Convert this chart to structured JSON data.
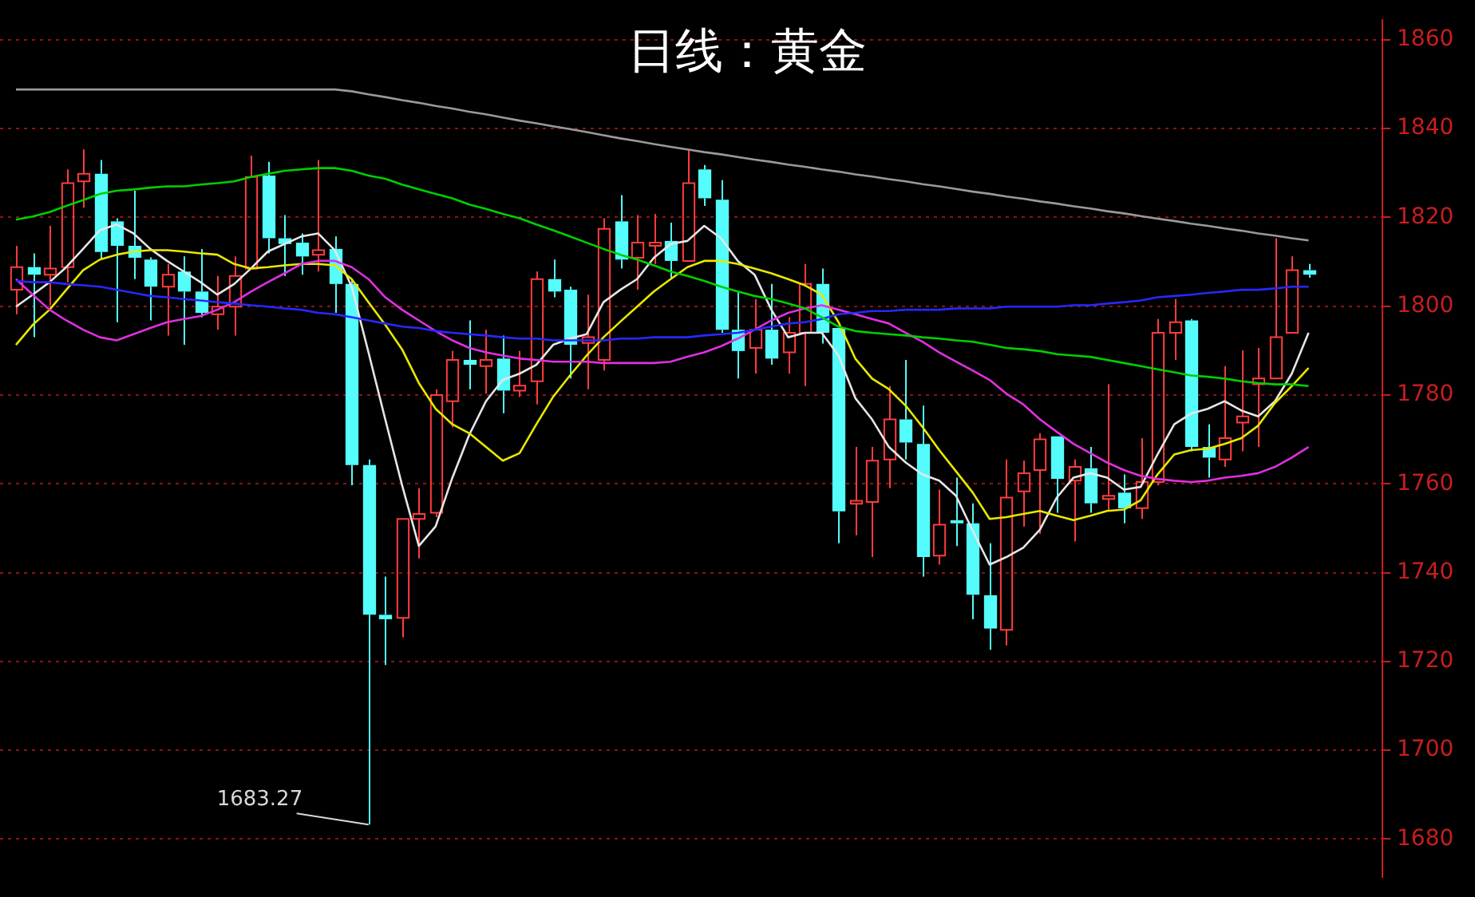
{
  "chart_data": {
    "type": "candlestick",
    "title": "日线：黄金",
    "categories": [
      null,
      null,
      null,
      null,
      null,
      null,
      null,
      null,
      null,
      null,
      null,
      null,
      null,
      null,
      null,
      null,
      null,
      null,
      null,
      null,
      null,
      null,
      null,
      null,
      null,
      null,
      null,
      null,
      null,
      null,
      null,
      null,
      null,
      null,
      null,
      null,
      null,
      null,
      null,
      null,
      null,
      null,
      null,
      null,
      null,
      null,
      null,
      null,
      null,
      null,
      null,
      null,
      null,
      null,
      null,
      null,
      null,
      null,
      null,
      null,
      null,
      null,
      null,
      null,
      null,
      null,
      null,
      null,
      null,
      null,
      null,
      null,
      null,
      null,
      null,
      null,
      null,
      null
    ],
    "ohlc": [
      [
        1803.7,
        1813.6,
        1798.2,
        1808.8
      ],
      [
        1808.8,
        1811.9,
        1793.0,
        1807.1
      ],
      [
        1807.1,
        1818.1,
        1800.2,
        1808.5
      ],
      [
        1808.8,
        1830.8,
        1805.4,
        1827.7
      ],
      [
        1828.1,
        1835.3,
        1822.2,
        1829.8
      ],
      [
        1829.8,
        1832.9,
        1810.5,
        1812.2
      ],
      [
        1819.1,
        1819.8,
        1796.4,
        1813.6
      ],
      [
        1813.6,
        1826.0,
        1806.1,
        1810.9
      ],
      [
        1810.5,
        1811.0,
        1796.8,
        1804.4
      ],
      [
        1804.4,
        1809.5,
        1793.4,
        1807.1
      ],
      [
        1807.8,
        1811.2,
        1791.3,
        1803.3
      ],
      [
        1803.3,
        1812.9,
        1797.5,
        1798.5
      ],
      [
        1798.2,
        1806.8,
        1794.7,
        1799.9
      ],
      [
        1799.9,
        1811.2,
        1793.4,
        1806.8
      ],
      [
        1808.5,
        1833.9,
        1808.5,
        1829.1
      ],
      [
        1829.4,
        1832.5,
        1811.9,
        1815.3
      ],
      [
        1815.3,
        1820.5,
        1806.8,
        1814.0
      ],
      [
        1814.3,
        1816.4,
        1807.1,
        1811.2
      ],
      [
        1811.6,
        1832.9,
        1807.8,
        1812.6
      ],
      [
        1812.9,
        1815.7,
        1798.5,
        1805.0
      ],
      [
        1805.0,
        1806.0,
        1759.7,
        1764.2
      ],
      [
        1764.2,
        1765.5,
        1683.27,
        1730.5
      ],
      [
        1730.5,
        1739.1,
        1719.2,
        1729.5
      ],
      [
        1729.8,
        1752.1,
        1725.4,
        1752.1
      ],
      [
        1752.1,
        1759.0,
        1743.2,
        1753.2
      ],
      [
        1753.5,
        1781.3,
        1752.5,
        1780.0
      ],
      [
        1778.6,
        1789.9,
        1772.7,
        1787.9
      ],
      [
        1787.9,
        1796.8,
        1781.3,
        1786.8
      ],
      [
        1786.5,
        1794.7,
        1780.3,
        1787.9
      ],
      [
        1788.2,
        1793.4,
        1775.9,
        1781.0
      ],
      [
        1781.0,
        1789.9,
        1779.6,
        1782.1
      ],
      [
        1783.1,
        1807.8,
        1777.9,
        1806.1
      ],
      [
        1806.1,
        1810.5,
        1802.0,
        1803.3
      ],
      [
        1803.7,
        1804.4,
        1783.7,
        1791.3
      ],
      [
        1791.7,
        1802.6,
        1781.3,
        1793.0
      ],
      [
        1787.9,
        1819.8,
        1785.5,
        1817.4
      ],
      [
        1819.1,
        1825.0,
        1808.5,
        1810.5
      ],
      [
        1810.9,
        1820.5,
        1803.7,
        1814.3
      ],
      [
        1813.6,
        1820.8,
        1809.5,
        1814.3
      ],
      [
        1814.7,
        1818.8,
        1806.1,
        1810.2
      ],
      [
        1810.2,
        1835.3,
        1810.2,
        1827.7
      ],
      [
        1830.8,
        1831.8,
        1822.6,
        1824.3
      ],
      [
        1824.0,
        1828.4,
        1794.0,
        1794.7
      ],
      [
        1794.7,
        1803.3,
        1783.7,
        1789.9
      ],
      [
        1790.6,
        1801.6,
        1784.8,
        1794.7
      ],
      [
        1794.7,
        1805.0,
        1786.8,
        1788.2
      ],
      [
        1789.6,
        1797.5,
        1784.8,
        1794.0
      ],
      [
        1794.0,
        1809.5,
        1782.0,
        1805.0
      ],
      [
        1805.0,
        1808.5,
        1791.6,
        1794.0
      ],
      [
        1795.1,
        1795.1,
        1746.6,
        1753.8
      ],
      [
        1755.5,
        1768.3,
        1748.4,
        1756.2
      ],
      [
        1755.9,
        1768.3,
        1743.5,
        1765.2
      ],
      [
        1765.5,
        1782.0,
        1759.0,
        1774.5
      ],
      [
        1774.5,
        1787.9,
        1765.5,
        1769.3
      ],
      [
        1769.0,
        1777.6,
        1739.1,
        1743.5
      ],
      [
        1743.8,
        1758.7,
        1741.8,
        1750.8
      ],
      [
        1751.8,
        1761.4,
        1746.0,
        1751.1
      ],
      [
        1751.1,
        1755.6,
        1729.5,
        1735.0
      ],
      [
        1734.9,
        1746.6,
        1722.6,
        1727.4
      ],
      [
        1727.1,
        1765.5,
        1723.6,
        1756.9
      ],
      [
        1758.3,
        1765.2,
        1750.4,
        1762.4
      ],
      [
        1763.1,
        1771.4,
        1748.7,
        1770.0
      ],
      [
        1770.7,
        1770.7,
        1753.5,
        1761.1
      ],
      [
        1760.7,
        1765.5,
        1747.0,
        1763.8
      ],
      [
        1763.5,
        1768.3,
        1753.5,
        1755.6
      ],
      [
        1756.6,
        1782.4,
        1753.8,
        1757.3
      ],
      [
        1758.0,
        1762.1,
        1751.1,
        1754.5
      ],
      [
        1754.5,
        1770.3,
        1752.1,
        1760.4
      ],
      [
        1760.4,
        1797.1,
        1759.7,
        1794.0
      ],
      [
        1794.0,
        1801.6,
        1787.9,
        1796.4
      ],
      [
        1796.8,
        1797.1,
        1767.3,
        1768.3
      ],
      [
        1768.3,
        1773.4,
        1761.4,
        1765.9
      ],
      [
        1765.5,
        1786.5,
        1763.8,
        1770.3
      ],
      [
        1773.8,
        1790.0,
        1767.3,
        1775.2
      ],
      [
        1782.4,
        1790.6,
        1768.3,
        1783.7
      ],
      [
        1783.7,
        1815.3,
        1783.7,
        1793.0
      ],
      [
        1794.0,
        1811.2,
        1794.0,
        1808.1
      ],
      [
        1808.1,
        1809.5,
        1806.4,
        1807.1
      ]
    ],
    "colors": [
      "#ff3c3c",
      "#54fcfc",
      "#ff3c3c",
      "#ff3c3c",
      "#ff3c3c",
      "#54fcfc",
      "#54fcfc",
      "#54fcfc",
      "#54fcfc",
      "#ff3c3c",
      "#54fcfc",
      "#54fcfc",
      "#ff3c3c",
      "#ff3c3c",
      "#ff3c3c",
      "#54fcfc",
      "#54fcfc",
      "#54fcfc",
      "#ff3c3c",
      "#54fcfc",
      "#54fcfc",
      "#54fcfc",
      "#54fcfc",
      "#ff3c3c",
      "#ff3c3c",
      "#ff3c3c",
      "#ff3c3c",
      "#54fcfc",
      "#ff3c3c",
      "#54fcfc",
      "#ff3c3c",
      "#ff3c3c",
      "#54fcfc",
      "#54fcfc",
      "#ff3c3c",
      "#ff3c3c",
      "#54fcfc",
      "#ff3c3c",
      "#ff3c3c",
      "#54fcfc",
      "#ff3c3c",
      "#54fcfc",
      "#54fcfc",
      "#54fcfc",
      "#ff3c3c",
      "#54fcfc",
      "#ff3c3c",
      "#ff3c3c",
      "#54fcfc",
      "#54fcfc",
      "#ff3c3c",
      "#ff3c3c",
      "#ff3c3c",
      "#54fcfc",
      "#54fcfc",
      "#ff3c3c",
      "#54fcfc",
      "#54fcfc",
      "#54fcfc",
      "#ff3c3c",
      "#ff3c3c",
      "#ff3c3c",
      "#54fcfc",
      "#ff3c3c",
      "#54fcfc",
      "#ff3c3c",
      "#54fcfc",
      "#ff3c3c",
      "#ff3c3c",
      "#ff3c3c",
      "#54fcfc",
      "#54fcfc",
      "#ff3c3c",
      "#ff3c3c",
      "#ff3c3c",
      "#ff3c3c",
      "#ff3c3c",
      "#54fcfc"
    ],
    "series": [
      {
        "type": "line",
        "color": "#9a9a9a",
        "values": [
          1848.8,
          1848.8,
          1848.8,
          1848.8,
          1848.8,
          1848.8,
          1848.8,
          1848.8,
          1848.8,
          1848.8,
          1848.8,
          1848.8,
          1848.8,
          1848.8,
          1848.8,
          1848.8,
          1848.8,
          1848.8,
          1848.8,
          1848.8,
          1848.4,
          1847.7,
          1847.1,
          1846.4,
          1845.8,
          1845.1,
          1844.5,
          1843.8,
          1843.2,
          1842.5,
          1841.8,
          1841.2,
          1840.5,
          1839.9,
          1839.2,
          1838.5,
          1837.8,
          1837.2,
          1836.5,
          1835.9,
          1835.3,
          1834.7,
          1834.2,
          1833.6,
          1833.0,
          1832.5,
          1831.9,
          1831.4,
          1830.8,
          1830.3,
          1829.7,
          1829.2,
          1828.6,
          1828.1,
          1827.5,
          1827.0,
          1826.4,
          1825.8,
          1825.3,
          1824.7,
          1824.2,
          1823.6,
          1823.1,
          1822.5,
          1822.0,
          1821.4,
          1820.9,
          1820.3,
          1819.7,
          1819.2,
          1818.6,
          1818.1,
          1817.5,
          1817.0,
          1816.4,
          1815.9,
          1815.3,
          1814.8
        ]
      },
      {
        "type": "line",
        "color": "#00d000",
        "values": [
          1819.5,
          1820.2,
          1821.2,
          1822.6,
          1823.9,
          1825.3,
          1826.0,
          1826.3,
          1826.7,
          1827.0,
          1827.0,
          1827.4,
          1827.7,
          1828.1,
          1829.1,
          1829.8,
          1830.5,
          1830.8,
          1831.1,
          1831.1,
          1830.5,
          1829.4,
          1828.7,
          1827.4,
          1826.3,
          1825.3,
          1824.3,
          1822.9,
          1821.9,
          1820.8,
          1819.8,
          1818.4,
          1817.1,
          1815.7,
          1814.3,
          1812.9,
          1811.6,
          1810.5,
          1809.2,
          1807.8,
          1806.8,
          1805.7,
          1804.4,
          1803.3,
          1802.3,
          1801.6,
          1800.6,
          1799.5,
          1797.5,
          1795.4,
          1794.4,
          1794.0,
          1793.7,
          1793.4,
          1793.0,
          1792.7,
          1792.3,
          1792.0,
          1791.3,
          1790.6,
          1790.3,
          1789.9,
          1789.2,
          1788.9,
          1788.6,
          1787.9,
          1787.2,
          1786.5,
          1785.8,
          1785.1,
          1784.4,
          1784.1,
          1783.7,
          1783.1,
          1782.7,
          1782.4,
          1782.4,
          1782.0
        ]
      },
      {
        "type": "line",
        "color": "#2828ff",
        "values": [
          1805.7,
          1805.4,
          1805.4,
          1805.0,
          1804.7,
          1804.4,
          1803.7,
          1803.0,
          1802.3,
          1802.0,
          1801.6,
          1801.3,
          1800.9,
          1800.6,
          1800.2,
          1799.9,
          1799.5,
          1799.2,
          1798.5,
          1798.2,
          1797.5,
          1796.8,
          1796.1,
          1795.4,
          1795.1,
          1794.4,
          1794.0,
          1793.7,
          1793.4,
          1793.0,
          1792.7,
          1792.7,
          1792.3,
          1792.3,
          1792.3,
          1792.3,
          1792.7,
          1792.7,
          1793.0,
          1793.0,
          1793.0,
          1793.4,
          1793.7,
          1794.0,
          1794.7,
          1795.4,
          1796.1,
          1796.4,
          1797.1,
          1798.2,
          1798.5,
          1798.9,
          1798.9,
          1799.2,
          1799.2,
          1799.2,
          1799.5,
          1799.5,
          1799.5,
          1799.9,
          1799.9,
          1799.9,
          1799.9,
          1800.2,
          1800.2,
          1800.6,
          1800.9,
          1801.3,
          1802.0,
          1802.3,
          1802.6,
          1803.0,
          1803.3,
          1803.7,
          1803.7,
          1804.0,
          1804.4,
          1804.4
        ]
      },
      {
        "type": "line",
        "color": "#e030e0",
        "values": [
          1806.1,
          1802.6,
          1799.2,
          1796.8,
          1794.7,
          1793.0,
          1792.3,
          1793.7,
          1795.1,
          1796.4,
          1797.1,
          1797.8,
          1799.2,
          1800.9,
          1803.3,
          1805.4,
          1807.4,
          1809.5,
          1810.2,
          1810.2,
          1808.8,
          1806.1,
          1802.0,
          1799.2,
          1796.8,
          1794.4,
          1792.3,
          1790.6,
          1789.6,
          1788.9,
          1788.2,
          1787.9,
          1787.5,
          1787.5,
          1787.5,
          1787.2,
          1787.2,
          1787.2,
          1787.2,
          1787.5,
          1788.6,
          1789.6,
          1791.0,
          1792.7,
          1794.7,
          1796.8,
          1798.5,
          1799.5,
          1800.2,
          1799.2,
          1798.2,
          1797.1,
          1796.1,
          1794.0,
          1792.0,
          1789.6,
          1787.5,
          1785.5,
          1783.4,
          1780.3,
          1777.9,
          1774.5,
          1771.7,
          1769.0,
          1766.9,
          1764.8,
          1763.1,
          1761.8,
          1761.1,
          1760.7,
          1760.4,
          1760.7,
          1761.4,
          1761.8,
          1762.4,
          1763.8,
          1765.9,
          1768.3
        ]
      },
      {
        "type": "line",
        "color": "#e8e800",
        "values": [
          1791.3,
          1795.8,
          1799.2,
          1803.7,
          1808.1,
          1810.5,
          1811.6,
          1812.3,
          1812.6,
          1812.6,
          1812.3,
          1811.9,
          1811.6,
          1809.5,
          1808.5,
          1808.8,
          1809.2,
          1809.5,
          1809.5,
          1809.2,
          1806.1,
          1800.9,
          1795.8,
          1790.3,
          1782.7,
          1776.9,
          1773.4,
          1771.4,
          1768.3,
          1765.2,
          1766.9,
          1773.4,
          1779.6,
          1784.4,
          1788.9,
          1793.0,
          1796.5,
          1799.9,
          1803.3,
          1806.1,
          1808.8,
          1810.2,
          1810.2,
          1809.5,
          1808.5,
          1807.4,
          1806.1,
          1804.7,
          1802.6,
          1796.4,
          1788.2,
          1783.7,
          1781.3,
          1777.6,
          1772.8,
          1767.6,
          1762.8,
          1758.0,
          1752.1,
          1752.5,
          1753.2,
          1753.9,
          1752.8,
          1751.8,
          1752.8,
          1753.9,
          1754.2,
          1756.3,
          1762.1,
          1766.6,
          1767.6,
          1767.9,
          1769.0,
          1770.3,
          1773.1,
          1778.2,
          1782.0,
          1786.1
        ]
      },
      {
        "type": "line",
        "color": "#e6e6e6",
        "values": [
          1799.9,
          1802.6,
          1805.4,
          1808.8,
          1812.9,
          1817.1,
          1818.4,
          1816.4,
          1812.9,
          1810.2,
          1807.8,
          1805.4,
          1802.6,
          1805.0,
          1808.5,
          1812.3,
          1814.0,
          1815.7,
          1816.4,
          1812.6,
          1804.4,
          1789.6,
          1774.5,
          1759.7,
          1746.0,
          1750.4,
          1761.4,
          1771.0,
          1778.6,
          1783.4,
          1784.8,
          1786.8,
          1791.3,
          1792.7,
          1793.7,
          1800.9,
          1803.7,
          1806.1,
          1810.9,
          1814.0,
          1814.7,
          1818.1,
          1815.3,
          1810.2,
          1807.1,
          1799.2,
          1793.0,
          1794.0,
          1794.0,
          1788.9,
          1779.3,
          1774.5,
          1768.3,
          1764.8,
          1762.1,
          1760.7,
          1757.3,
          1749.4,
          1741.8,
          1743.5,
          1745.6,
          1749.7,
          1756.9,
          1761.4,
          1762.4,
          1761.4,
          1758.7,
          1759.3,
          1766.6,
          1773.4,
          1775.8,
          1776.9,
          1778.6,
          1776.5,
          1775.2,
          1778.6,
          1784.8,
          1794.0
        ]
      }
    ],
    "ylim": [
      1671.4,
      1864.5
    ],
    "yticks": [
      1680,
      1700,
      1720,
      1740,
      1760,
      1780,
      1800,
      1820,
      1840,
      1860
    ],
    "grid": "y",
    "tick_labels": "y",
    "annotations": [
      "1683.27"
    ]
  }
}
